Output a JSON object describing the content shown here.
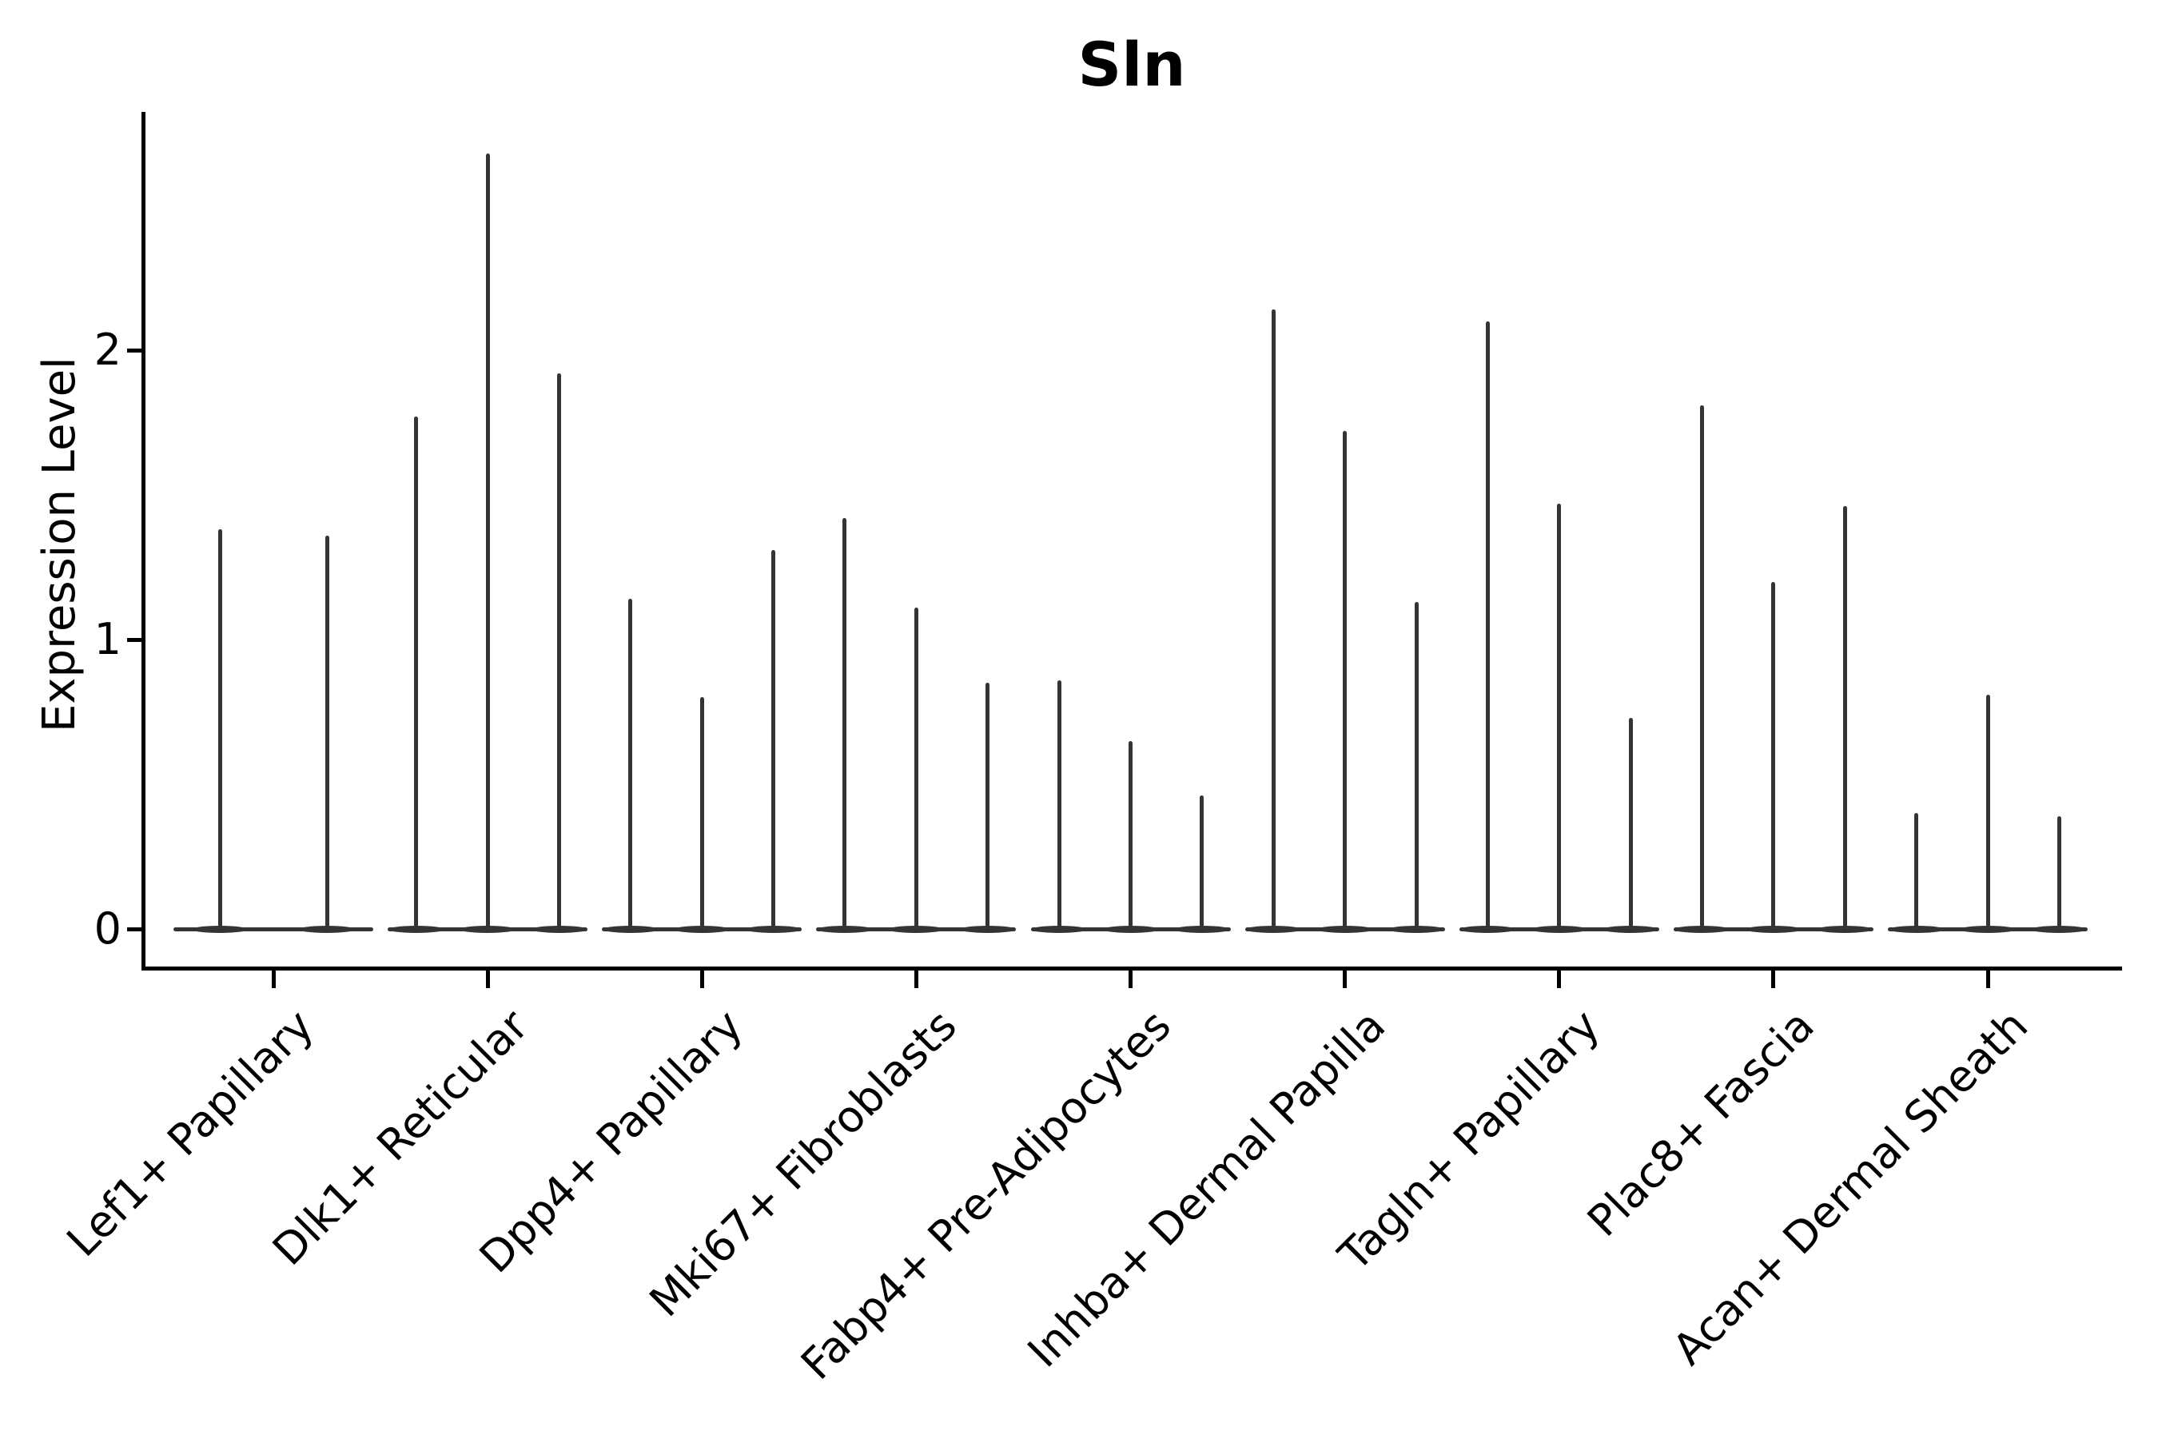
{
  "figure": {
    "title": "Sln",
    "y_axis": {
      "label": "Expression Level",
      "tick_labels": [
        "0",
        "1",
        "2"
      ]
    }
  },
  "chart_data": {
    "type": "violin",
    "title": "Sln",
    "xlabel": "",
    "ylabel": "Expression Level",
    "ylim": [
      0,
      2.82
    ],
    "yticks": [
      0,
      1,
      2
    ],
    "grid": false,
    "legend_position": "none",
    "violin_color": "#343434",
    "axis_color": "#000000",
    "note": "Collapsed single-gene expression violins; bulk of cells at 0 (flat base), thin spikes mark maximum expression per violin; 2-3 violins per category",
    "categories": [
      "Lef1+ Papillary",
      "Dlk1+ Reticular",
      "Dpp4+ Papillary",
      "Mki67+ Fibroblasts",
      "Fabp4+ Pre-Adipocytes",
      "Inhba+ Dermal Papilla",
      "Tagln+ Papillary",
      "Plac8+ Fascia",
      "Acan+ Dermal Sheath"
    ],
    "series": [
      {
        "category": "Lef1+ Papillary",
        "violin_max_values": [
          1.38,
          1.36
        ]
      },
      {
        "category": "Dlk1+ Reticular",
        "violin_max_values": [
          1.77,
          2.68,
          1.92
        ]
      },
      {
        "category": "Dpp4+ Papillary",
        "violin_max_values": [
          1.14,
          0.8,
          1.31
        ]
      },
      {
        "category": "Mki67+ Fibroblasts",
        "violin_max_values": [
          1.42,
          1.11,
          0.85
        ]
      },
      {
        "category": "Fabp4+ Pre-Adipocytes",
        "violin_max_values": [
          0.86,
          0.65,
          0.46
        ]
      },
      {
        "category": "Inhba+ Dermal Papilla",
        "violin_max_values": [
          2.14,
          1.72,
          1.13
        ]
      },
      {
        "category": "Tagln+ Papillary",
        "violin_max_values": [
          2.1,
          1.47,
          0.73
        ]
      },
      {
        "category": "Plac8+ Fascia",
        "violin_max_values": [
          1.81,
          1.2,
          1.46
        ]
      },
      {
        "category": "Acan+ Dermal Sheath",
        "violin_max_values": [
          0.4,
          0.81,
          0.39
        ]
      }
    ]
  }
}
